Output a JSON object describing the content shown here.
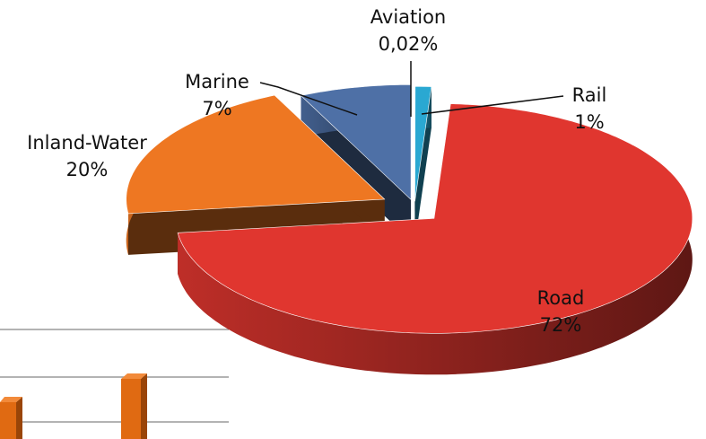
{
  "chart_data": {
    "type": "pie",
    "view": "3d-exploded",
    "categories": [
      "Aviation",
      "Rail",
      "Road",
      "Inland-Water",
      "Marine"
    ],
    "values": [
      0.02,
      1,
      72,
      20,
      7
    ],
    "value_labels": [
      "0,02%",
      "1%",
      "72%",
      "20%",
      "7%"
    ],
    "colors": [
      "#d6eef6",
      "#2aa8d2",
      "#e0362f",
      "#ee7722",
      "#4e70a6"
    ]
  }
}
